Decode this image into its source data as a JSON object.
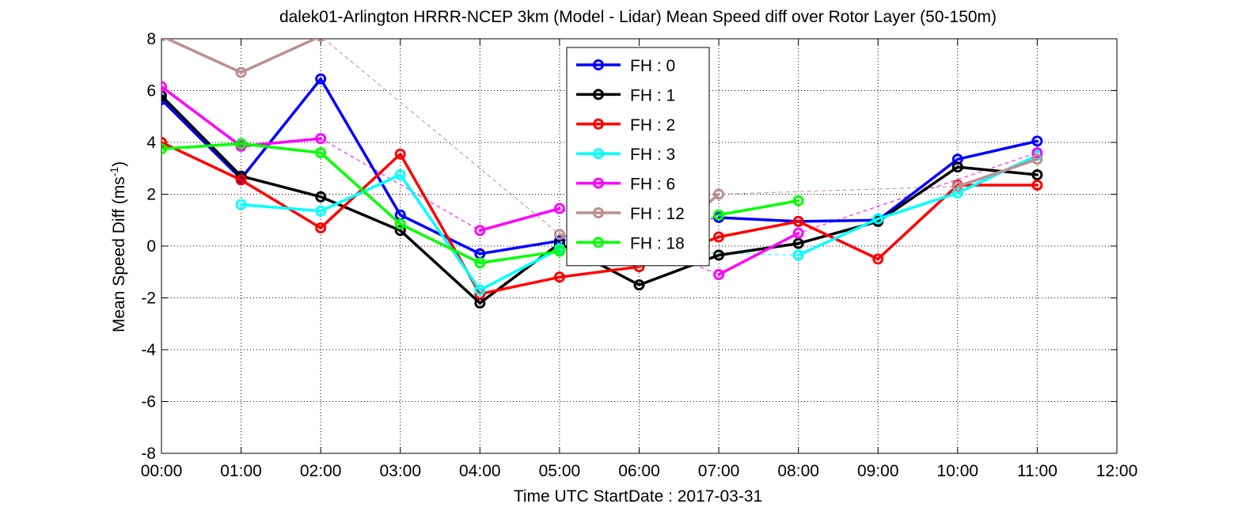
{
  "chart_data": {
    "type": "line",
    "title": "dalek01-Arlington HRRR-NCEP 3km (Model - Lidar) Mean Speed diff over Rotor Layer (50-150m)",
    "xlabel": "Time UTC    StartDate : 2017-03-31",
    "ylabel_main": "Mean Speed Diff (ms",
    "ylabel_sup": "-1",
    "ylabel_close": ")",
    "xlim": [
      0,
      12
    ],
    "ylim": [
      -8,
      8
    ],
    "x_ticks": [
      0,
      1,
      2,
      3,
      4,
      5,
      6,
      7,
      8,
      9,
      10,
      11,
      12
    ],
    "x_tick_labels": [
      "00:00",
      "01:00",
      "02:00",
      "03:00",
      "04:00",
      "05:00",
      "06:00",
      "07:00",
      "08:00",
      "09:00",
      "10:00",
      "11:00",
      "12:00"
    ],
    "y_ticks": [
      -8,
      -6,
      -4,
      -2,
      0,
      2,
      4,
      6,
      8
    ],
    "y_tick_labels": [
      "-8",
      "-6",
      "-4",
      "-2",
      "0",
      "2",
      "4",
      "6",
      "8"
    ],
    "grid": true,
    "legend_position": "top-center",
    "series": [
      {
        "name": "FH : 0",
        "color": "#0000ff",
        "x": [
          0,
          1,
          2,
          3,
          4,
          5,
          6,
          7,
          8,
          9,
          10,
          11
        ],
        "values": [
          5.65,
          2.6,
          6.45,
          1.2,
          -0.3,
          0.2,
          null,
          1.1,
          0.95,
          1.0,
          3.35,
          4.05
        ]
      },
      {
        "name": "FH : 1",
        "color": "#000000",
        "x": [
          0,
          1,
          2,
          3,
          4,
          5,
          6,
          7,
          8,
          9,
          10,
          11
        ],
        "values": [
          5.8,
          2.7,
          1.9,
          0.6,
          -2.2,
          0.1,
          -1.5,
          -0.35,
          0.1,
          0.95,
          3.05,
          2.75
        ]
      },
      {
        "name": "FH : 2",
        "color": "#ff0000",
        "x": [
          0,
          1,
          2,
          3,
          4,
          5,
          6,
          7,
          8,
          9,
          10,
          11
        ],
        "values": [
          4.0,
          2.55,
          0.7,
          3.55,
          -1.85,
          -1.2,
          -0.8,
          0.35,
          0.95,
          -0.5,
          2.35,
          2.35
        ]
      },
      {
        "name": "FH : 3",
        "color": "#00ffff",
        "x": [
          0,
          1,
          2,
          3,
          4,
          5,
          6,
          7,
          8,
          9,
          10,
          11
        ],
        "values": [
          null,
          1.6,
          1.35,
          2.75,
          -1.7,
          -0.1,
          null,
          null,
          -0.35,
          1.05,
          2.05,
          3.5
        ]
      },
      {
        "name": "FH : 6",
        "color": "#ff00ff",
        "x": [
          0,
          1,
          2,
          3,
          4,
          5,
          6,
          7,
          8,
          9,
          10,
          11
        ],
        "values": [
          6.15,
          3.85,
          4.15,
          null,
          0.6,
          1.45,
          null,
          -1.1,
          0.5,
          null,
          null,
          3.6
        ]
      },
      {
        "name": "FH : 12",
        "color": "#bc8f8f",
        "x": [
          0,
          1,
          2,
          3,
          4,
          5,
          6,
          7,
          8,
          9,
          10,
          11
        ],
        "values": [
          8.1,
          6.7,
          8.1,
          null,
          null,
          0.45,
          -0.6,
          2.0,
          null,
          null,
          2.3,
          3.35
        ]
      },
      {
        "name": "FH : 18",
        "color": "#00ff00",
        "x": [
          0,
          1,
          2,
          3,
          4,
          5,
          6,
          7,
          8,
          9,
          10,
          11
        ],
        "values": [
          3.75,
          3.95,
          3.6,
          0.85,
          -0.65,
          -0.2,
          null,
          1.2,
          1.75,
          null,
          null,
          null
        ]
      }
    ]
  }
}
